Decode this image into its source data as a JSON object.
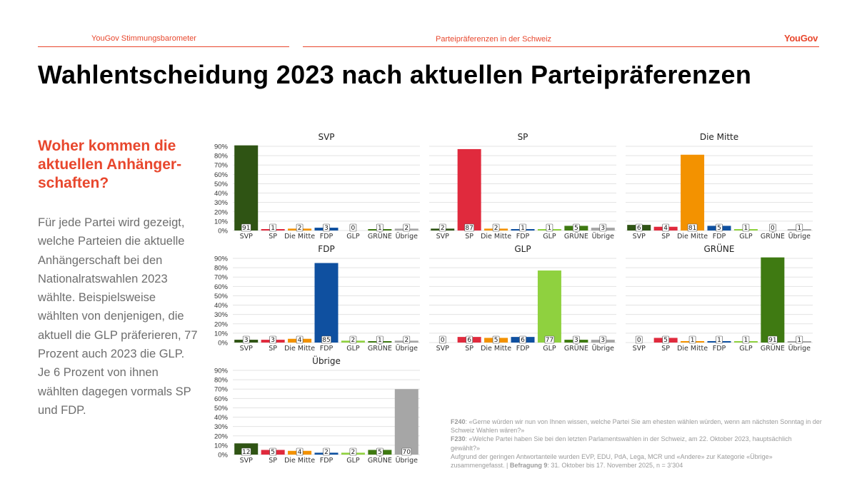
{
  "header": {
    "left_label": "YouGov Stimmungsbarometer",
    "center_label": "Parteipräferenzen in der Schweiz",
    "logo": "YouGov"
  },
  "title": "Wahlentscheidung 2023 nach aktuellen Parteipräferenzen",
  "subtitle": "Woher kommen die aktuellen Anhänger-schaften?",
  "body_text": "Für jede Partei wird gezeigt, welche Parteien die aktuelle Anhängerschaft bei den Nationalratswahlen 2023 wählte. Beispielsweise wählten von denjenigen, die aktuell die GLP präferieren, 77 Prozent auch 2023 die GLP. Je 6 Prozent von ihnen wählten dagegen vormals SP und FDP.",
  "footnote": {
    "f240_label": "F240",
    "f240_text": ": «Gerne würden wir nun von Ihnen wissen, welche Partei Sie am ehesten wählen würden, wenn am nächsten Sonntag in der Schweiz Wahlen wären?»",
    "f230_label": "F230",
    "f230_text": ": «Welche Partei haben Sie bei den letzten Parlamentswahlen in der Schweiz, am 22. Oktober 2023, hauptsächlich gewählt?»",
    "note": "Aufgrund der geringen Antwortanteile wurden EVP, EDU, PdA, Lega, MCR und «Andere» zur Kategorie «Übrige» zusammengefasst. | ",
    "survey_label": "Befragung 9",
    "survey_text": ": 31. Oktober bis 17. November 2025, n = 3’304"
  },
  "colors": {
    "accent": "#e8472d",
    "SVP": "#2f5414",
    "SP": "#e02a3d",
    "Die Mitte": "#f39200",
    "FDP": "#0f50a0",
    "GLP": "#8fd13f",
    "GRÜNE": "#3f7a12",
    "Übrige": "#a6a6a6",
    "grid": "#e3e3e3",
    "axis_text": "#333333"
  },
  "chart_data": [
    {
      "type": "bar",
      "title": "SVP",
      "categories": [
        "SVP",
        "SP",
        "Die Mitte",
        "FDP",
        "GLP",
        "GRÜNE",
        "Übrige"
      ],
      "values": [
        91,
        1,
        2,
        3,
        0,
        1,
        2
      ],
      "ylim": [
        0,
        90
      ],
      "yticks": [
        "0%",
        "10%",
        "20%",
        "30%",
        "40%",
        "50%",
        "60%",
        "70%",
        "80%",
        "90%"
      ]
    },
    {
      "type": "bar",
      "title": "SP",
      "categories": [
        "SVP",
        "SP",
        "Die Mitte",
        "FDP",
        "GLP",
        "GRÜNE",
        "Übrige"
      ],
      "values": [
        2,
        87,
        2,
        1,
        1,
        5,
        3
      ],
      "ylim": [
        0,
        90
      ]
    },
    {
      "type": "bar",
      "title": "Die Mitte",
      "categories": [
        "SVP",
        "SP",
        "Die Mitte",
        "FDP",
        "GLP",
        "GRÜNE",
        "Übrige"
      ],
      "values": [
        6,
        4,
        81,
        5,
        1,
        0,
        1
      ],
      "ylim": [
        0,
        90
      ]
    },
    {
      "type": "bar",
      "title": "FDP",
      "categories": [
        "SVP",
        "SP",
        "Die Mitte",
        "FDP",
        "GLP",
        "GRÜNE",
        "Übrige"
      ],
      "values": [
        3,
        3,
        4,
        85,
        2,
        1,
        2
      ],
      "ylim": [
        0,
        90
      ],
      "yticks": [
        "0%",
        "10%",
        "20%",
        "30%",
        "40%",
        "50%",
        "60%",
        "70%",
        "80%",
        "90%"
      ]
    },
    {
      "type": "bar",
      "title": "GLP",
      "categories": [
        "SVP",
        "SP",
        "Die Mitte",
        "FDP",
        "GLP",
        "GRÜNE",
        "Übrige"
      ],
      "values": [
        0,
        6,
        5,
        6,
        77,
        3,
        3
      ],
      "ylim": [
        0,
        90
      ]
    },
    {
      "type": "bar",
      "title": "GRÜNE",
      "categories": [
        "SVP",
        "SP",
        "Die Mitte",
        "FDP",
        "GLP",
        "GRÜNE",
        "Übrige"
      ],
      "values": [
        0,
        5,
        1,
        1,
        1,
        91,
        1
      ],
      "ylim": [
        0,
        90
      ]
    },
    {
      "type": "bar",
      "title": "Übrige",
      "categories": [
        "SVP",
        "SP",
        "Die Mitte",
        "FDP",
        "GLP",
        "GRÜNE",
        "Übrige"
      ],
      "values": [
        12,
        5,
        4,
        2,
        2,
        5,
        70
      ],
      "ylim": [
        0,
        90
      ],
      "yticks": [
        "0%",
        "10%",
        "20%",
        "30%",
        "40%",
        "50%",
        "60%",
        "70%",
        "80%",
        "90%"
      ]
    }
  ]
}
